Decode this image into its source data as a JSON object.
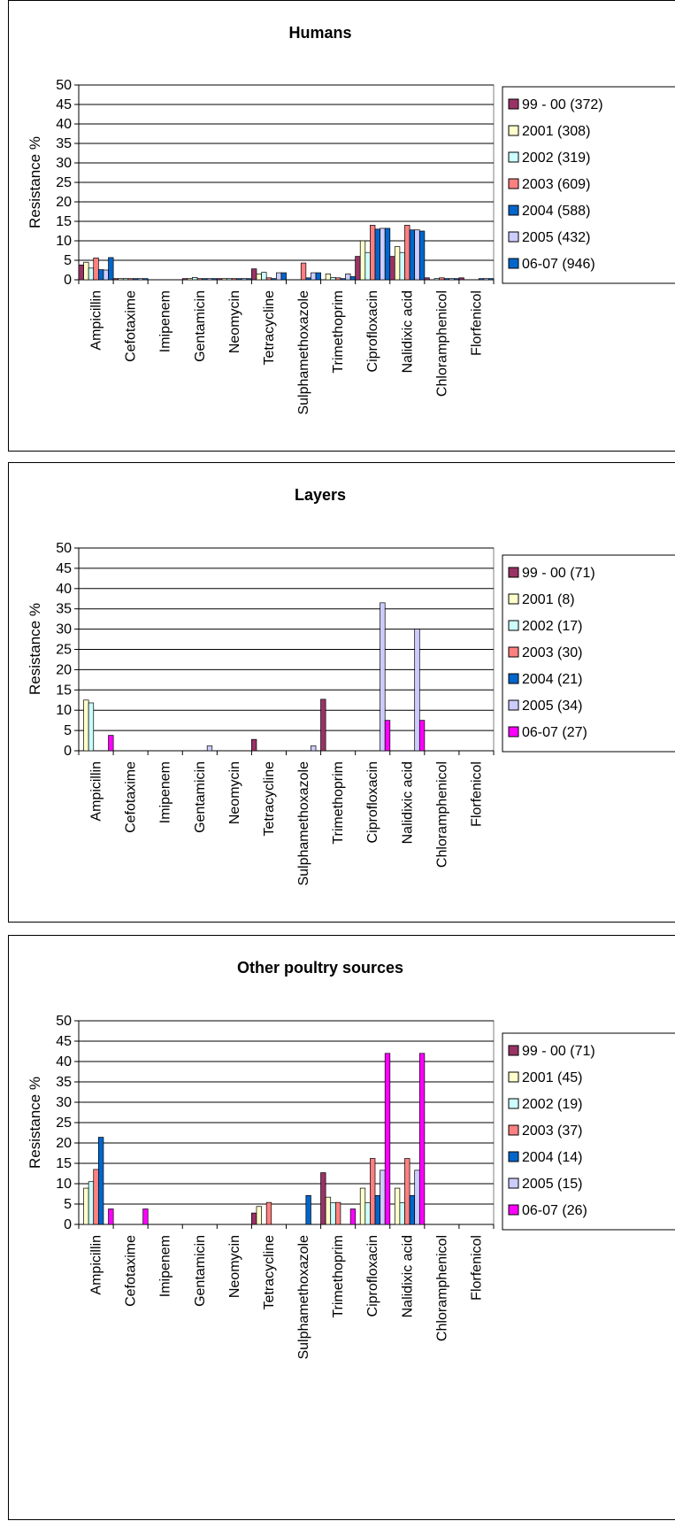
{
  "chart_data": [
    {
      "type": "bar",
      "title": "Humans",
      "ylabel": "Resistance %",
      "ylim": [
        0,
        50
      ],
      "yticks": [
        "0",
        "5",
        "10",
        "15",
        "20",
        "25",
        "30",
        "35",
        "40",
        "45",
        "50"
      ],
      "grid": true,
      "legend_position": "right",
      "categories": [
        "Ampicillin",
        "Cefotaxime",
        "Imipenem",
        "Gentamicin",
        "Neomycin",
        "Tetracycline",
        "Sulphamethoxazole",
        "Trimethoprim",
        "Ciprofloxacin",
        "Nalidixic acid",
        "Chloramphenicol",
        "Florfenicol"
      ],
      "series": [
        {
          "name": "99 - 00 (372)",
          "color": "#993366",
          "values": [
            3.8,
            0.3,
            0,
            0.3,
            0.3,
            2.8,
            0,
            0,
            6,
            6,
            0.5,
            0.5
          ]
        },
        {
          "name": "2001 (308)",
          "color": "#FFFFCC",
          "values": [
            4.5,
            0.3,
            0,
            0.3,
            0.3,
            1.5,
            0,
            1.5,
            10,
            8.5,
            0,
            0
          ]
        },
        {
          "name": "2002 (319)",
          "color": "#CCFFFF",
          "values": [
            3,
            0.3,
            0,
            0.6,
            0.3,
            1.9,
            0,
            0.6,
            7,
            7,
            0.3,
            0
          ]
        },
        {
          "name": "2003 (609)",
          "color": "#FF8080",
          "values": [
            5.6,
            0.3,
            0,
            0.3,
            0.3,
            0.5,
            4.3,
            0.5,
            14,
            14,
            0.5,
            0
          ]
        },
        {
          "name": "2004 (588)",
          "color": "#0066CC",
          "values": [
            2.6,
            0.3,
            0,
            0.3,
            0.3,
            0.3,
            0.5,
            0.3,
            13,
            12.8,
            0.3,
            0.3
          ]
        },
        {
          "name": "2005 (432)",
          "color": "#CCCCFF",
          "values": [
            2.5,
            0.3,
            0,
            0.3,
            0.3,
            1.8,
            1.8,
            1.5,
            13.2,
            12.8,
            0.3,
            0.3
          ]
        },
        {
          "name": "06-07 (946)",
          "color": "#0066CC",
          "values": [
            5.7,
            0.3,
            0,
            0.3,
            0.3,
            1.8,
            1.8,
            0.8,
            13.2,
            12.5,
            0.3,
            0.3
          ]
        }
      ]
    },
    {
      "type": "bar",
      "title": "Layers",
      "ylabel": "Resistance %",
      "ylim": [
        0,
        50
      ],
      "yticks": [
        "0",
        "5",
        "10",
        "15",
        "20",
        "25",
        "30",
        "35",
        "40",
        "45",
        "50"
      ],
      "grid": true,
      "legend_position": "right",
      "categories": [
        "Ampicillin",
        "Cefotaxime",
        "Imipenem",
        "Gentamicin",
        "Neomycin",
        "Tetracycline",
        "Sulphamethoxazole",
        "Trimethoprim",
        "Ciprofloxacin",
        "Nalidixic acid",
        "Chloramphenicol",
        "Florfenicol"
      ],
      "series": [
        {
          "name": "99 - 00 (71)",
          "color": "#993366",
          "values": [
            0,
            0,
            0,
            0,
            0,
            2.8,
            0,
            12.7,
            0,
            0,
            0,
            0
          ]
        },
        {
          "name": "2001 (8)",
          "color": "#FFFFCC",
          "values": [
            12.5,
            0,
            0,
            0,
            0,
            0,
            0,
            0,
            0,
            0,
            0,
            0
          ]
        },
        {
          "name": "2002 (17)",
          "color": "#CCFFFF",
          "values": [
            11.8,
            0,
            0,
            0,
            0,
            0,
            0,
            0,
            0,
            0,
            0,
            0
          ]
        },
        {
          "name": "2003 (30)",
          "color": "#FF8080",
          "values": [
            0,
            0,
            0,
            0,
            0,
            0,
            0,
            0,
            0,
            0,
            0,
            0
          ]
        },
        {
          "name": "2004  (21)",
          "color": "#0066CC",
          "values": [
            0,
            0,
            0,
            0,
            0,
            0,
            0,
            0,
            0,
            0,
            0,
            0
          ]
        },
        {
          "name": "2005 (34)",
          "color": "#CCCCFF",
          "values": [
            0,
            0,
            0,
            1.2,
            0,
            0,
            1.2,
            0,
            36.5,
            30,
            0,
            0
          ]
        },
        {
          "name": "06-07 (27)",
          "color": "#FF00FF",
          "values": [
            3.8,
            0,
            0,
            0,
            0,
            0,
            0,
            0,
            7.5,
            7.5,
            0,
            0
          ]
        }
      ]
    },
    {
      "type": "bar",
      "title": "Other poultry sources",
      "ylabel": "Resistance %",
      "ylim": [
        0,
        50
      ],
      "yticks": [
        "0",
        "5",
        "10",
        "15",
        "20",
        "25",
        "30",
        "35",
        "40",
        "45",
        "50"
      ],
      "grid": true,
      "legend_position": "right",
      "categories": [
        "Ampicillin",
        "Cefotaxime",
        "Imipenem",
        "Gentamicin",
        "Neomycin",
        "Tetracycline",
        "Sulphamethoxazole",
        "Trimethoprim",
        "Ciprofloxacin",
        "Nalidixic acid",
        "Chloramphenicol",
        "Florfenicol"
      ],
      "series": [
        {
          "name": "99 - 00 (71)",
          "color": "#993366",
          "values": [
            0,
            0,
            0,
            0,
            0,
            2.8,
            0,
            12.7,
            0,
            0,
            0,
            0
          ]
        },
        {
          "name": "2001 (45)",
          "color": "#FFFFCC",
          "values": [
            8.9,
            0,
            0,
            0,
            0,
            4.4,
            0,
            6.7,
            8.9,
            8.9,
            0,
            0
          ]
        },
        {
          "name": "2002 (19)",
          "color": "#CCFFFF",
          "values": [
            10.5,
            0,
            0,
            0,
            0,
            0,
            0,
            5.3,
            5.3,
            5.3,
            0,
            0
          ]
        },
        {
          "name": "2003 (37)",
          "color": "#FF8080",
          "values": [
            13.5,
            0,
            0,
            0,
            0,
            5.4,
            0,
            5.4,
            16.2,
            16.2,
            0,
            0
          ]
        },
        {
          "name": "2004 (14)",
          "color": "#0066CC",
          "values": [
            21.4,
            0,
            0,
            0,
            0,
            0,
            7.1,
            0,
            7.1,
            7.1,
            0,
            0
          ]
        },
        {
          "name": "2005 (15)",
          "color": "#CCCCFF",
          "values": [
            0,
            0,
            0,
            0,
            0,
            0,
            0,
            0,
            13.3,
            13.3,
            0,
            0
          ]
        },
        {
          "name": "06-07 (26)",
          "color": "#FF00FF",
          "values": [
            3.8,
            3.8,
            0,
            0,
            0,
            0,
            0,
            3.8,
            42,
            42,
            0,
            0
          ]
        }
      ]
    }
  ]
}
